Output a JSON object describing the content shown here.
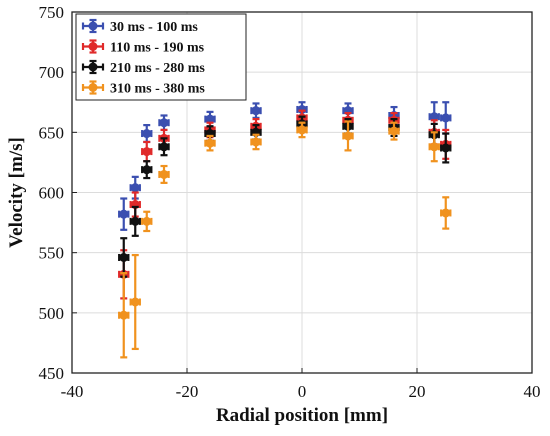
{
  "chart_data": {
    "type": "scatter",
    "xlabel": "Radial position [mm]",
    "ylabel": "Velocity [m/s]",
    "xlim": [
      -40,
      40
    ],
    "ylim": [
      450,
      750
    ],
    "xticks": [
      -40,
      -20,
      0,
      20,
      40
    ],
    "yticks": [
      450,
      500,
      550,
      600,
      650,
      700,
      750
    ],
    "xtick_labels": [
      "-40",
      "-20",
      "0",
      "20",
      "40"
    ],
    "ytick_labels": [
      "450",
      "500",
      "550",
      "600",
      "650",
      "700",
      "750"
    ],
    "grid": true,
    "legend_position": "top-left",
    "error_bars": "x and y",
    "series": [
      {
        "name": "30 ms - 100 ms",
        "color": "#3b4fb0",
        "points": [
          {
            "x": -31,
            "y": 582,
            "ey": 13,
            "ex": 0.8
          },
          {
            "x": -29,
            "y": 604,
            "ey": 9,
            "ex": 0.8
          },
          {
            "x": -27,
            "y": 649,
            "ey": 7,
            "ex": 0.8
          },
          {
            "x": -24,
            "y": 658,
            "ey": 6,
            "ex": 0.8
          },
          {
            "x": -16,
            "y": 661,
            "ey": 6,
            "ex": 0.8
          },
          {
            "x": -8,
            "y": 668,
            "ey": 6,
            "ex": 0.8
          },
          {
            "x": 0,
            "y": 669,
            "ey": 6,
            "ex": 0.8
          },
          {
            "x": 8,
            "y": 668,
            "ey": 6,
            "ex": 0.8
          },
          {
            "x": 16,
            "y": 664,
            "ey": 7,
            "ex": 0.8
          },
          {
            "x": 23,
            "y": 663,
            "ey": 12,
            "ex": 0.8
          },
          {
            "x": 25,
            "y": 662,
            "ey": 13,
            "ex": 0.8
          }
        ]
      },
      {
        "name": "110 ms - 190 ms",
        "color": "#e02a2a",
        "points": [
          {
            "x": -31,
            "y": 532,
            "ey": 20,
            "ex": 0.8
          },
          {
            "x": -29,
            "y": 590,
            "ey": 10,
            "ex": 0.8
          },
          {
            "x": -27,
            "y": 634,
            "ey": 8,
            "ex": 0.8
          },
          {
            "x": -24,
            "y": 645,
            "ey": 7,
            "ex": 0.8
          },
          {
            "x": -16,
            "y": 652,
            "ey": 6,
            "ex": 0.8
          },
          {
            "x": -8,
            "y": 655,
            "ey": 6,
            "ex": 0.8
          },
          {
            "x": 0,
            "y": 662,
            "ey": 6,
            "ex": 0.8
          },
          {
            "x": 8,
            "y": 660,
            "ey": 6,
            "ex": 0.8
          },
          {
            "x": 16,
            "y": 660,
            "ey": 6,
            "ex": 0.8
          },
          {
            "x": 23,
            "y": 650,
            "ey": 10,
            "ex": 0.8
          },
          {
            "x": 25,
            "y": 640,
            "ey": 12,
            "ex": 0.8
          }
        ]
      },
      {
        "name": "210 ms - 280 ms",
        "color": "#111111",
        "points": [
          {
            "x": -31,
            "y": 546,
            "ey": 16,
            "ex": 0.8
          },
          {
            "x": -29,
            "y": 576,
            "ey": 12,
            "ex": 0.8
          },
          {
            "x": -27,
            "y": 619,
            "ey": 7,
            "ex": 0.8
          },
          {
            "x": -24,
            "y": 638,
            "ey": 7,
            "ex": 0.8
          },
          {
            "x": -16,
            "y": 649,
            "ey": 6,
            "ex": 0.8
          },
          {
            "x": -8,
            "y": 650,
            "ey": 6,
            "ex": 0.8
          },
          {
            "x": 0,
            "y": 657,
            "ey": 6,
            "ex": 0.8
          },
          {
            "x": 8,
            "y": 655,
            "ey": 6,
            "ex": 0.8
          },
          {
            "x": 16,
            "y": 654,
            "ey": 7,
            "ex": 0.8
          },
          {
            "x": 23,
            "y": 648,
            "ey": 9,
            "ex": 0.8
          },
          {
            "x": 25,
            "y": 637,
            "ey": 12,
            "ex": 0.8
          }
        ]
      },
      {
        "name": "310 ms - 380 ms",
        "color": "#f0921e",
        "points": [
          {
            "x": -31,
            "y": 498,
            "ey": 35,
            "ex": 0.8
          },
          {
            "x": -29,
            "y": 509,
            "ey": 39,
            "ex": 0.8
          },
          {
            "x": -27,
            "y": 576,
            "ey": 8,
            "ex": 0.8
          },
          {
            "x": -24,
            "y": 615,
            "ey": 7,
            "ex": 0.8
          },
          {
            "x": -16,
            "y": 641,
            "ey": 6,
            "ex": 0.8
          },
          {
            "x": -8,
            "y": 642,
            "ey": 6,
            "ex": 0.8
          },
          {
            "x": 0,
            "y": 652,
            "ey": 6,
            "ex": 0.8
          },
          {
            "x": 8,
            "y": 647,
            "ey": 12,
            "ex": 0.8
          },
          {
            "x": 16,
            "y": 651,
            "ey": 7,
            "ex": 0.8
          },
          {
            "x": 23,
            "y": 638,
            "ey": 12,
            "ex": 0.8
          },
          {
            "x": 25,
            "y": 583,
            "ey": 13,
            "ex": 0.8
          }
        ]
      }
    ]
  }
}
